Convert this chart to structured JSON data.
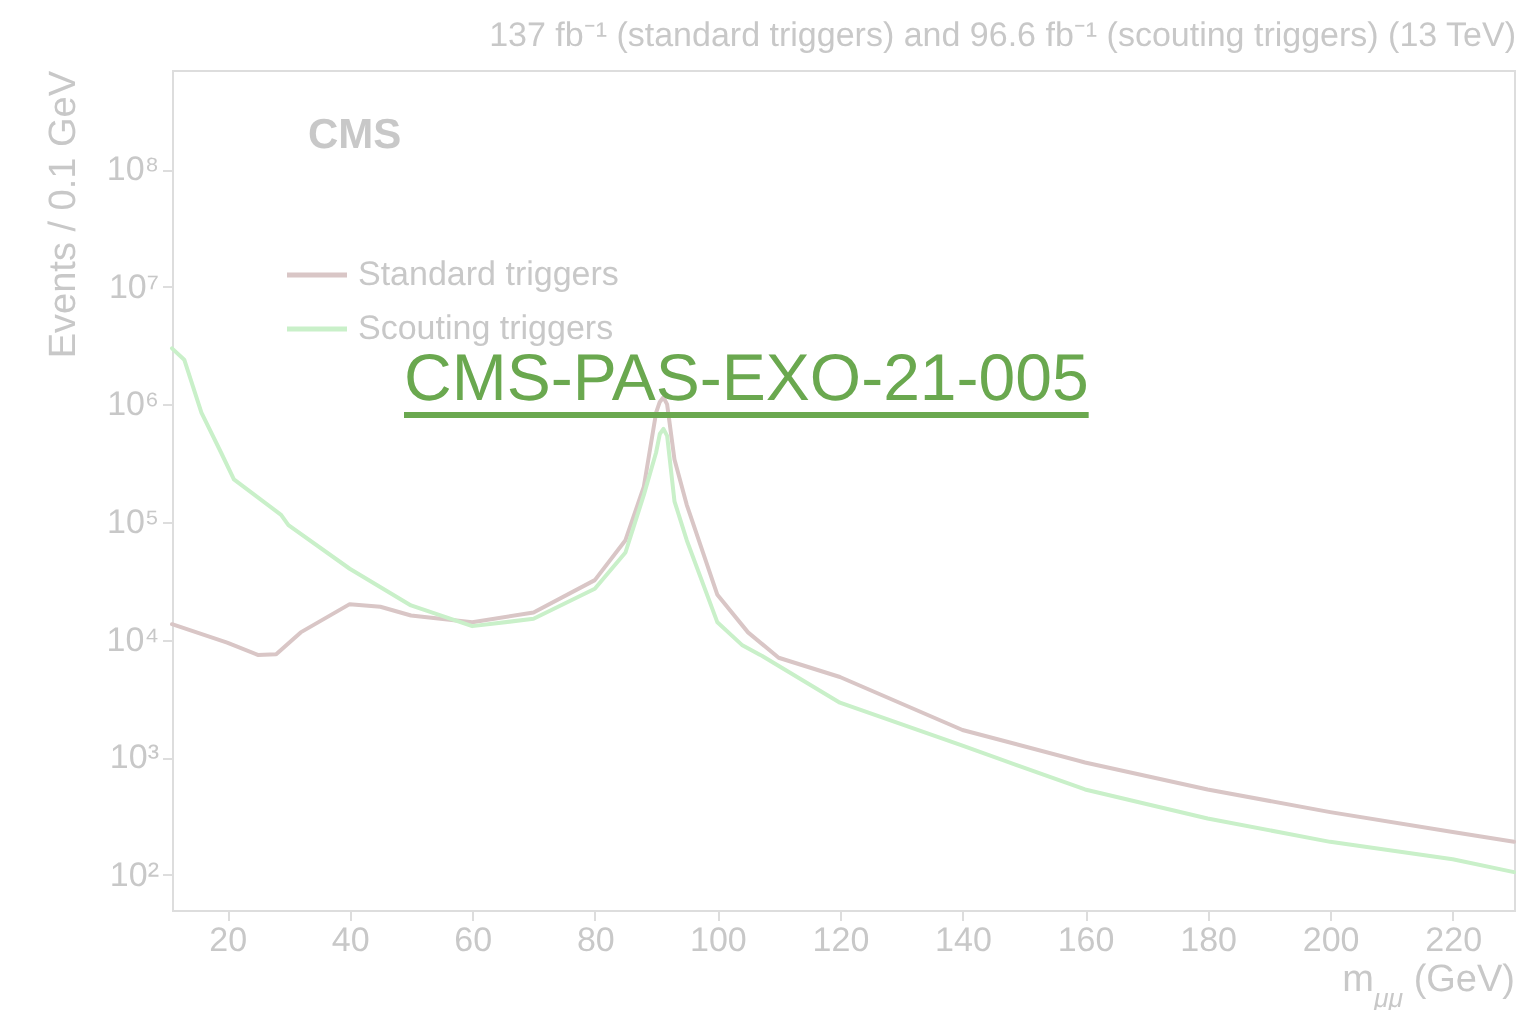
{
  "chart_data": {
    "type": "line",
    "title": "137 fb⁻¹ (standard triggers) and 96.6 fb⁻¹ (scouting triggers) (13 TeV)",
    "xlabel": "m$_{μμ}$ (GeV)",
    "ylabel": "Events / 0.1 GeV",
    "annotations": [
      "CMS",
      "CMS-PAS-EXO-21-005"
    ],
    "log": "y",
    "legend": "top left",
    "xlim": [
      11,
      230
    ],
    "xticks": [
      20,
      40,
      60,
      80,
      100,
      120,
      140,
      160,
      180,
      200,
      220
    ],
    "ylim": [
      50,
      700000000
    ],
    "yticks": [
      {
        "value": 100,
        "label": "10²"
      },
      {
        "value": 1000,
        "label": "10³"
      },
      {
        "value": 10000,
        "label": "10⁴"
      },
      {
        "value": 100000,
        "label": "10⁵"
      },
      {
        "value": 1000000,
        "label": "10⁶"
      },
      {
        "value": 10000000,
        "label": "10⁷"
      },
      {
        "value": 100000000,
        "label": "10⁸"
      }
    ],
    "series": [
      {
        "name": "Standard triggers",
        "color": "#d9c6c6",
        "x": [
          11,
          20,
          25,
          28,
          32,
          40,
          45,
          50,
          60,
          70,
          80,
          85,
          88,
          90,
          90.6,
          91.2,
          91.8,
          93,
          95,
          100,
          105,
          110,
          120,
          140,
          160,
          180,
          200,
          220,
          230
        ],
        "values": [
          13500,
          9400,
          7400,
          7500,
          11500,
          20000,
          19000,
          16000,
          14000,
          17000,
          32000,
          70000,
          200000,
          850000,
          1050000,
          1150000,
          1000000,
          340000,
          140000,
          24000,
          11500,
          7000,
          4800,
          1700,
          900,
          530,
          340,
          230,
          190
        ]
      },
      {
        "name": "Scouting triggers",
        "color": "#c9f0c9",
        "x": [
          11,
          13,
          15.8,
          19,
          21.1,
          28.8,
          30,
          40,
          50,
          60,
          70,
          80,
          85,
          88,
          90,
          90.6,
          91.2,
          91.8,
          93,
          95,
          100,
          104,
          107,
          120,
          140,
          160,
          180,
          200,
          220,
          230
        ],
        "values": [
          3000000,
          2400000,
          850000,
          390000,
          230000,
          115000,
          94000,
          40000,
          19500,
          13000,
          15000,
          27000,
          55000,
          170000,
          390000,
          560000,
          620000,
          540000,
          150000,
          70000,
          14000,
          9000,
          7400,
          2900,
          1250,
          530,
          300,
          190,
          135,
          105
        ]
      }
    ]
  }
}
